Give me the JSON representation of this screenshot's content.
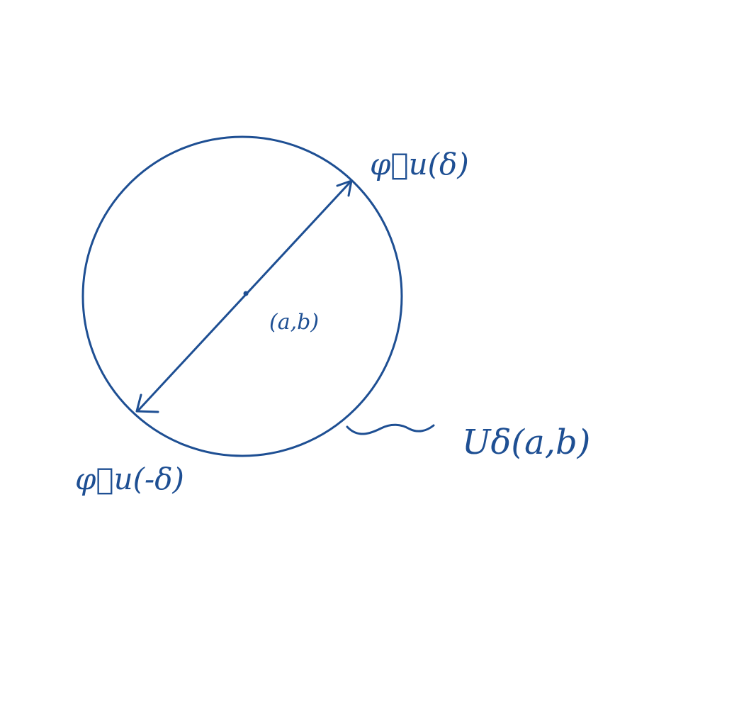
{
  "diagram": {
    "center_label": "(a,b)",
    "top_right_point_label": "φ⃗u(δ)",
    "bottom_left_point_label": "φ⃗u(-δ)",
    "neighborhood_label": "Uδ(a,b)",
    "ink_color": "#1e4f93",
    "background_color": "#ffffff"
  }
}
